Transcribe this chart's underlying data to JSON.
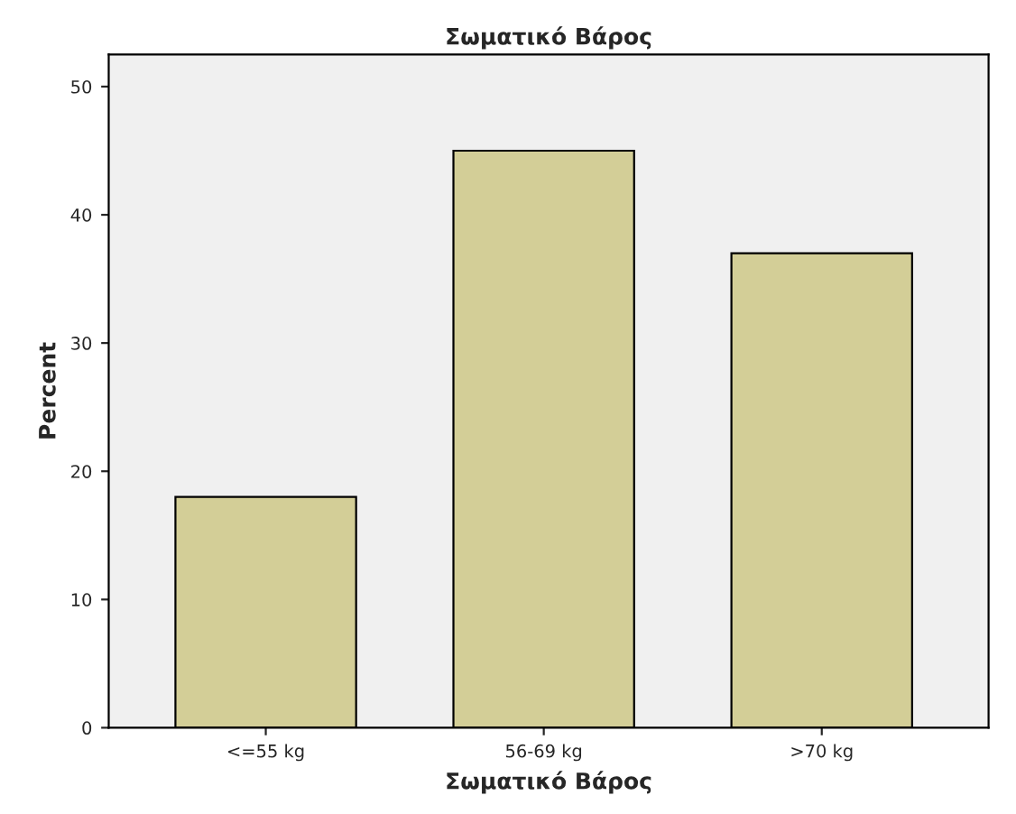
{
  "chart_data": {
    "type": "bar",
    "title": "Σωματικό Βάρος",
    "xlabel": "Σωματικό Βάρος",
    "ylabel": "Percent",
    "categories": [
      "<=55 kg",
      "56-69 kg",
      ">70 kg"
    ],
    "values": [
      18,
      45,
      37
    ],
    "color": "#d3ce97",
    "ylim": [
      0,
      52.5
    ],
    "yticks": [
      0,
      10,
      20,
      30,
      40,
      50
    ],
    "grid": false,
    "legend": false
  }
}
